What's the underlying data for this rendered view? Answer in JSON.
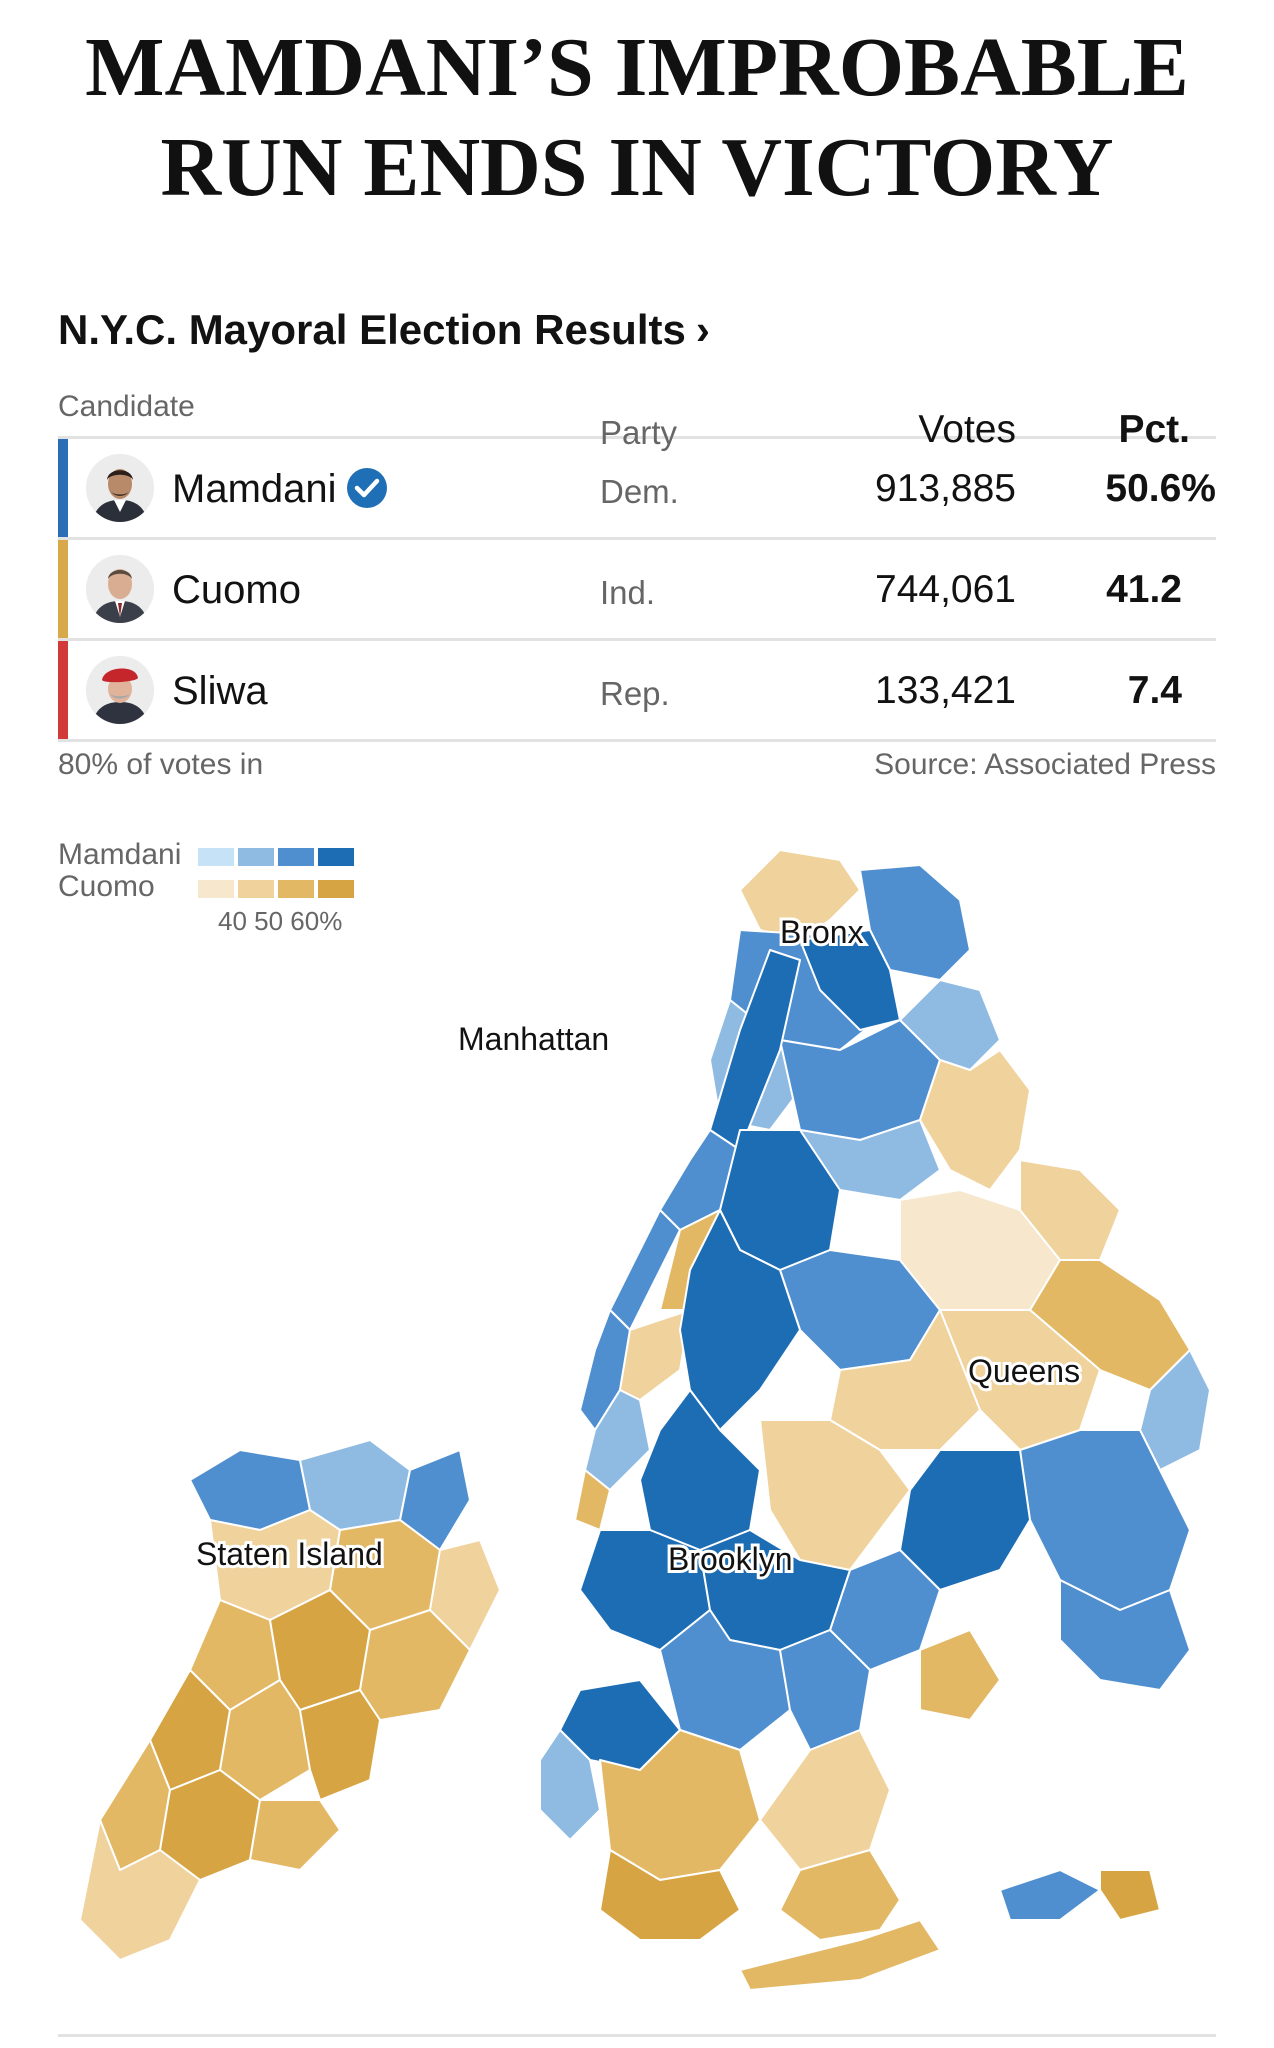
{
  "headline": {
    "line1": "MAMDANI’S IMPROBABLE",
    "line2": "RUN ENDS IN VICTORY"
  },
  "results": {
    "title": "N.Y.C. Mayoral Election Results",
    "title_chevron": "›",
    "columns": {
      "candidate": "Candidate",
      "party": "Party",
      "votes": "Votes",
      "pct": "Pct."
    },
    "rows": [
      {
        "name": "Mamdani",
        "party": "Dem.",
        "votes": "913,885",
        "pct": "50.6%",
        "bar_color": "#2a6fb5",
        "winner": true
      },
      {
        "name": "Cuomo",
        "party": "Ind.",
        "votes": "744,061",
        "pct": "41.2",
        "bar_color": "#d8a94a",
        "winner": false
      },
      {
        "name": "Sliwa",
        "party": "Rep.",
        "votes": "133,421",
        "pct": "7.4",
        "bar_color": "#d23a3a",
        "winner": false
      }
    ],
    "reporting": "80% of votes in",
    "source": "Source: Associated Press"
  },
  "legend": {
    "mamdani_label": "Mamdani",
    "cuomo_label": "Cuomo",
    "ticks": "40 50 60%",
    "mamdani_colors": [
      "#c6e2f7",
      "#8fbbe3",
      "#4f8fd0",
      "#1d6db5"
    ],
    "cuomo_colors": [
      "#f7e7cc",
      "#efd29c",
      "#e3b865",
      "#d7a443"
    ]
  },
  "map": {
    "labels": {
      "bronx": "Bronx",
      "manhattan": "Manhattan",
      "queens": "Queens",
      "brooklyn": "Brooklyn",
      "staten_island": "Staten Island"
    }
  }
}
